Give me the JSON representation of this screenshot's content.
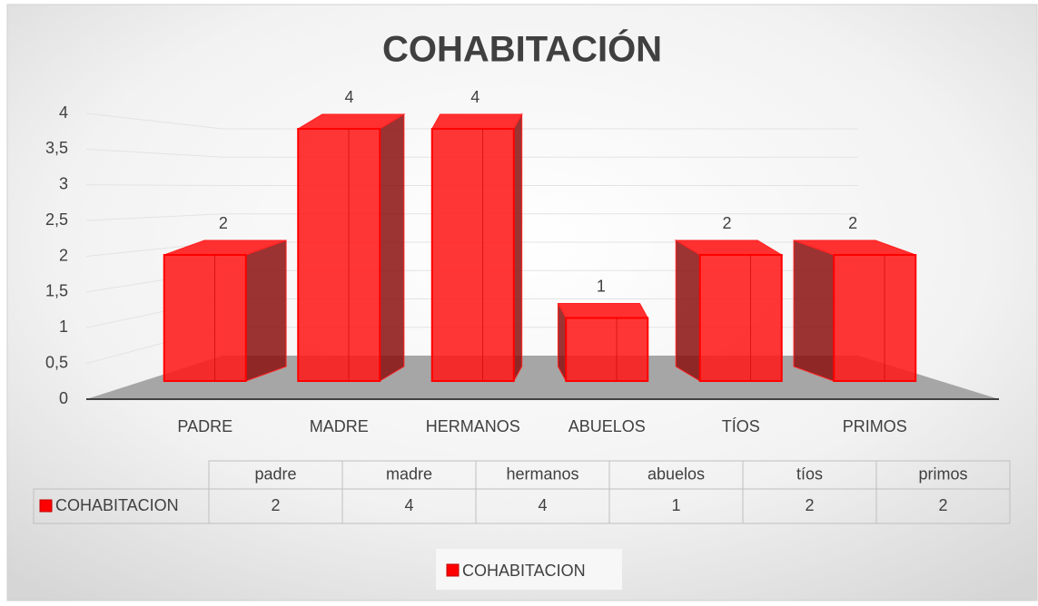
{
  "chart_data": {
    "type": "bar3d",
    "title": "COHABITACIÓN",
    "categories": [
      "PADRE",
      "MADRE",
      "HERMANOS",
      "ABUELOS",
      "TÍOS",
      "PRIMOS"
    ],
    "table_headers": [
      "padre",
      "madre",
      "hermanos",
      "abuelos",
      "tíos",
      "primos"
    ],
    "series": [
      {
        "name": "COHABITACION",
        "color": "#ff0000",
        "values": [
          2,
          4,
          4,
          1,
          2,
          2
        ]
      }
    ],
    "ylim": [
      0,
      4
    ],
    "yticks": [
      0,
      {
        "value": 0.5,
        "label": "0,5"
      },
      1,
      {
        "value": 1.5,
        "label": "1,5"
      },
      2,
      {
        "value": 2.5,
        "label": "2,5"
      },
      3,
      {
        "value": 3.5,
        "label": "3,5"
      },
      4
    ],
    "grid": true
  }
}
